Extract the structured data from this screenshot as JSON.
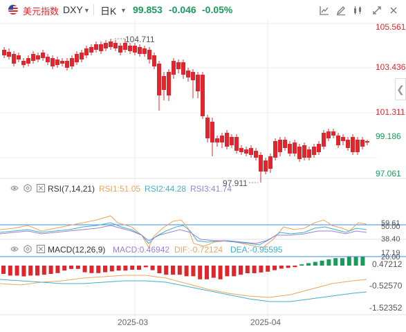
{
  "header": {
    "symbol_name": "美元指数",
    "symbol_code": "DXY",
    "period": "日K",
    "last_price": "99.853",
    "change": "-0.046",
    "change_pct": "-0.05%",
    "flag_icon": "us-flag-icon",
    "colors": {
      "down": "#1a9b5a",
      "up": "#e0262d"
    }
  },
  "toolbar": {
    "icons": [
      "indicator-chart-icon",
      "edit-drawing-icon",
      "candle-type-icon",
      "fullscreen-icon",
      "close-icon"
    ]
  },
  "price_axis": {
    "labels": [
      "105.561",
      "103.436",
      "101.311",
      "99.186",
      "97.061"
    ],
    "high_label": "104.711",
    "low_label": "97.911"
  },
  "rsi": {
    "name": "RSI(7,14,21)",
    "rsi1": "RSI1:51.05",
    "rsi2": "RSI2:44.28",
    "rsi3": "RSI3:41.74",
    "axis": [
      "59.61",
      "50.00",
      "38.40",
      "17.19",
      "20.00"
    ],
    "colors": {
      "rsi1": "#f0a35e",
      "rsi2": "#3fb0c8",
      "rsi3": "#9b7fd6",
      "bands": "#3a8de0"
    }
  },
  "macd": {
    "name": "MACD(12,26,9)",
    "macd": "MACD:0.46942",
    "dif": "DIF:-0.72124",
    "dea": "DEA:-0.95595",
    "axis": [
      "0.47212",
      "-0.52570",
      "-1.52352"
    ],
    "colors": {
      "macd": "#9b7fd6",
      "dif": "#f0a35e",
      "dea": "#3fb0c8"
    }
  },
  "time_axis": [
    "2025-03",
    "2025-04"
  ]
}
